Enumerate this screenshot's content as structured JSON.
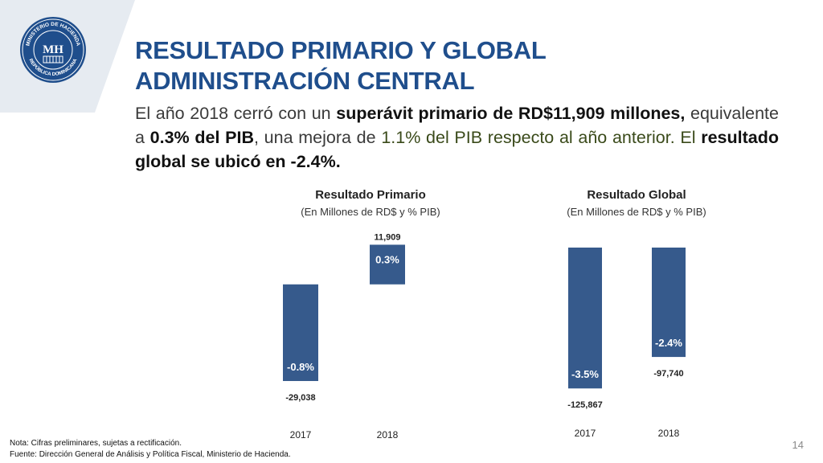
{
  "logo": {
    "ring_text_top": "MINISTERIO DE HACIENDA",
    "ring_text_bottom": "REPÚBLICA DOMINICANA",
    "monogram": "MH"
  },
  "title": {
    "line1": "RESULTADO PRIMARIO Y GLOBAL",
    "line2": "ADMINISTRACIÓN CENTRAL"
  },
  "intro": {
    "p1": "El año 2018 cerró con un ",
    "p2": "superávit primario de RD$11,909 millones,",
    "p3": " equivalente a ",
    "p4": "0.3% del PIB",
    "p5": ", una mejora de ",
    "p6": "1.1% del PIB respecto al año anterior. El",
    "p7": " ",
    "p8": "resultado global se ubicó en -2.4%."
  },
  "colors": {
    "title": "#1f4e8c",
    "bar": "#365a8c",
    "accent_panel": "#e6ebf1"
  },
  "chart_data": [
    {
      "type": "bar",
      "title": "Resultado Primario",
      "subtitle": "(En Millones de RD$ y % PIB)",
      "categories": [
        "2017",
        "2018"
      ],
      "values": [
        -29038,
        11909
      ],
      "value_labels": [
        "-29,038",
        "11,909"
      ],
      "pct_labels": [
        "-0.8%",
        "0.3%"
      ],
      "ylim": [
        -30000,
        12500
      ]
    },
    {
      "type": "bar",
      "title": "Resultado Global",
      "subtitle": "(En Millones de RD$ y % PIB)",
      "categories": [
        "2017",
        "2018"
      ],
      "values": [
        -125867,
        -97740
      ],
      "value_labels": [
        "-125,867",
        "-97,740"
      ],
      "pct_labels": [
        "-3.5%",
        "-2.4%"
      ],
      "ylim": [
        -130000,
        0
      ]
    }
  ],
  "footer": {
    "note": "Nota: Cifras preliminares, sujetas a rectificación.",
    "source": "Fuente: Dirección General de Análisis y Política Fiscal, Ministerio de Hacienda.",
    "page": "14"
  }
}
